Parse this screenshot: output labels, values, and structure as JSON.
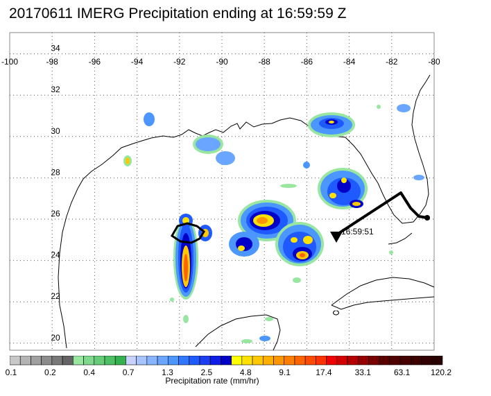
{
  "title": "20170611 IMERG Precipitation ending at 16:59:59 Z",
  "map": {
    "lon_range": [
      -100,
      -80
    ],
    "lat_range": [
      19.5,
      35
    ],
    "lon_ticks": [
      "-100",
      "-98",
      "-96",
      "-94",
      "-92",
      "-90",
      "-88",
      "-86",
      "-84",
      "-82",
      "-80"
    ],
    "lat_ticks": [
      "34",
      "32",
      "30",
      "28",
      "26",
      "24",
      "22",
      "20"
    ],
    "grid": true
  },
  "track": {
    "time_label": "16:59:51",
    "color": "#000000"
  },
  "colorbar": {
    "title": "Precipitation rate (mm/hr)",
    "labels": [
      "0.1",
      "0.2",
      "0.4",
      "0.7",
      "1.3",
      "2.5",
      "4.8",
      "9.1",
      "17.4",
      "33.1",
      "63.1",
      "120.2"
    ],
    "colors": [
      "#c8c8c8",
      "#b4b4b4",
      "#a0a0a0",
      "#8c8c8c",
      "#787878",
      "#646464",
      "#98e6a0",
      "#7fd98c",
      "#66cc78",
      "#4dbf64",
      "#34b250",
      "#c8d2ff",
      "#a8c4ff",
      "#88b4ff",
      "#6aa6ff",
      "#4c96ff",
      "#3277ff",
      "#1e5aff",
      "#1c3df0",
      "#0f1ee6",
      "#0000c8",
      "#ffff00",
      "#ffe100",
      "#ffc800",
      "#ffaf00",
      "#ff9600",
      "#ff7d00",
      "#ff6400",
      "#ff4b00",
      "#ff3200",
      "#f00000",
      "#d20000",
      "#b40000",
      "#960000",
      "#780000",
      "#5a0000",
      "#500000",
      "#460000",
      "#3c0000",
      "#320000",
      "#280000"
    ]
  }
}
